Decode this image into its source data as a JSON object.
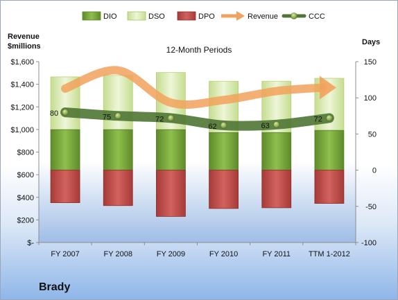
{
  "chart_data": {
    "type": "bar",
    "title": "12-Month Periods",
    "ylabel_left": "Revenue\n$millions",
    "ylabel_right": "Days",
    "company": "Brady",
    "categories": [
      "FY 2007",
      "FY 2008",
      "FY 2009",
      "FY 2010",
      "FY 2011",
      "TTM 1-2012"
    ],
    "left_axis": {
      "min": 0,
      "max": 1600,
      "step": 200,
      "ticks": [
        "$-",
        "$200",
        "$400",
        "$600",
        "$800",
        "$1,000",
        "$1,200",
        "$1,400",
        "$1,600"
      ]
    },
    "right_axis": {
      "min": -100,
      "max": 150,
      "step": 50,
      "ticks": [
        "-100",
        "-50",
        "0",
        "50",
        "100",
        "150"
      ]
    },
    "series": [
      {
        "name": "DIO",
        "axis": "right",
        "kind": "stacked-bar",
        "color": "#77a33a",
        "values": [
          56,
          56,
          56,
          52,
          52,
          55
        ]
      },
      {
        "name": "DSO",
        "axis": "right",
        "kind": "stacked-bar",
        "color": "#d4e6a8",
        "values": [
          73,
          75,
          79,
          71,
          71,
          72
        ]
      },
      {
        "name": "DPO",
        "axis": "right",
        "kind": "negative-bar",
        "color": "#c0504d",
        "values": [
          -45,
          -49,
          -64,
          -53,
          -52,
          -46
        ]
      },
      {
        "name": "Revenue",
        "axis": "left",
        "kind": "arrow-line",
        "color": "#f2a25c",
        "values": [
          1362,
          1523,
          1237,
          1261,
          1340,
          1370
        ]
      },
      {
        "name": "CCC",
        "axis": "right",
        "kind": "line",
        "color": "#4f7534",
        "values": [
          80,
          75,
          72,
          62,
          63,
          72
        ]
      }
    ],
    "data_labels": [
      "80",
      "75",
      "72",
      "62",
      "63",
      "72"
    ],
    "legend": {
      "position": "top",
      "items": [
        "DIO",
        "DSO",
        "DPO",
        "Revenue",
        "CCC"
      ]
    },
    "grid": false
  }
}
